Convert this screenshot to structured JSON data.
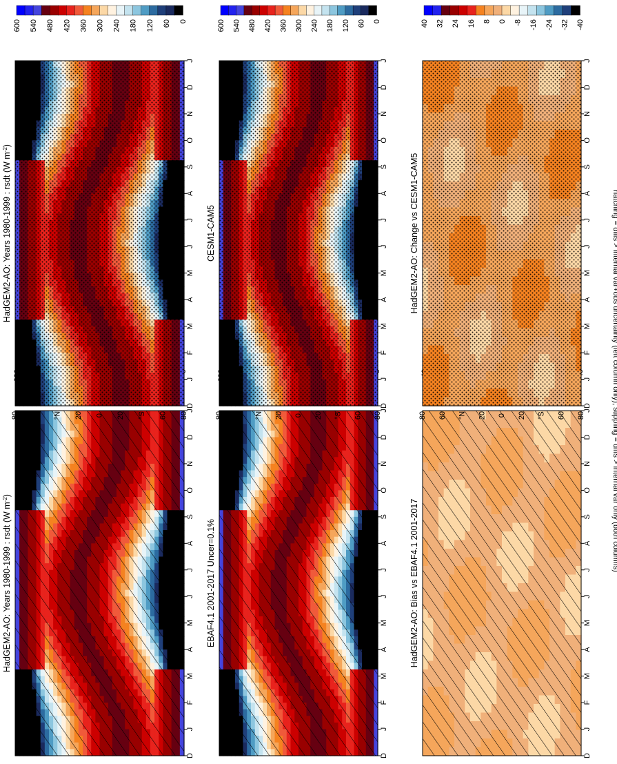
{
  "months": [
    "J",
    "F",
    "M",
    "A",
    "M",
    "J",
    "J",
    "A",
    "S",
    "O",
    "N",
    "D",
    "J"
  ],
  "dec_label": "D",
  "lat_ticks": [
    "80",
    "60",
    "°N",
    "20",
    "0",
    "20",
    "°S",
    "60",
    "80"
  ],
  "note": "hatching = diffs > internal var+obs uncertainty (left column only); stippling = diffs > internal var only (both columns)",
  "colors": {
    "clim_scale": [
      "#0000ff",
      "#2222ee",
      "#4444dd",
      "#660011",
      "#990000",
      "#cc0000",
      "#e8231d",
      "#f05a3a",
      "#f58220",
      "#f5a65b",
      "#fcd8a6",
      "#fff2e0",
      "#e8f4f8",
      "#c4e3ef",
      "#8cc6df",
      "#4f9cc4",
      "#2c6ba0",
      "#1f3f7a",
      "#1a2a5e",
      "#000000"
    ],
    "bias_scale": [
      "#0000ff",
      "#2222ee",
      "#660011",
      "#990000",
      "#cc0000",
      "#e8231d",
      "#f58220",
      "#f5a65b",
      "#f0b07a",
      "#fcd8a6",
      "#fff2e0",
      "#e8f4f8",
      "#c4e3ef",
      "#8cc6df",
      "#4f9cc4",
      "#2c6ba0",
      "#1f3f7a",
      "#000000"
    ]
  },
  "panels": [
    {
      "id": "p1",
      "title": "HadGEM2-AO: Years 1980-1999 : rsdt (W m",
      "title_sup": "-2",
      "title_end": ")",
      "kind": "clim",
      "hatch": true,
      "stipple": false,
      "colorbar_labels": [
        "600",
        "540",
        "480",
        "420",
        "360",
        "300",
        "240",
        "180",
        "120",
        "60",
        "0"
      ]
    },
    {
      "id": "p2",
      "title": "HadGEM2-AO: Years 1980-1999 : rsdt (W m",
      "title_sup": "-2",
      "title_end": ")",
      "kind": "clim",
      "hatch": false,
      "stipple": true,
      "colorbar_labels": [
        "600",
        "540",
        "480",
        "420",
        "360",
        "300",
        "240",
        "180",
        "120",
        "60",
        "0"
      ]
    },
    {
      "id": "p3",
      "title": "EBAF4.1 2001-2017 Uncer=0.1%",
      "title_sup": "",
      "title_end": "",
      "kind": "clim",
      "hatch": true,
      "stipple": false,
      "colorbar_labels": [
        "600",
        "540",
        "480",
        "420",
        "360",
        "300",
        "240",
        "180",
        "120",
        "60",
        "0"
      ]
    },
    {
      "id": "p4",
      "title": "CESM1-CAM5",
      "title_sup": "",
      "title_end": "",
      "kind": "clim",
      "hatch": false,
      "stipple": true,
      "colorbar_labels": [
        "600",
        "540",
        "480",
        "420",
        "360",
        "300",
        "240",
        "180",
        "120",
        "60",
        "0"
      ]
    },
    {
      "id": "p5",
      "title": "HadGEM2-AO: Bias vs EBAF4.1 2001-2017",
      "title_sup": "",
      "title_end": "",
      "kind": "bias",
      "hatch": true,
      "stipple": false,
      "colorbar_labels": [
        "40",
        "32",
        "24",
        "16",
        "8",
        "0",
        "-8",
        "-16",
        "-24",
        "-32",
        "-40"
      ]
    },
    {
      "id": "p6",
      "title": "HadGEM2-AO: Change vs CESM1-CAM5",
      "title_sup": "",
      "title_end": "",
      "kind": "change",
      "hatch": false,
      "stipple": true,
      "colorbar_labels": [
        "40",
        "32",
        "24",
        "16",
        "8",
        "0",
        "-8",
        "-16",
        "-24",
        "-32",
        "-40"
      ]
    }
  ],
  "chart_data": {
    "type": "heatmap",
    "variable": "rsdt",
    "x_axis": "latitude (90N to 90S)",
    "y_axis": "month (D, J..D, J)",
    "clim_levels": [
      0,
      60,
      120,
      180,
      240,
      300,
      360,
      420,
      480,
      540,
      600
    ],
    "bias_levels": [
      -40,
      -32,
      -24,
      -16,
      -8,
      0,
      8,
      16,
      24,
      32,
      40
    ]
  }
}
